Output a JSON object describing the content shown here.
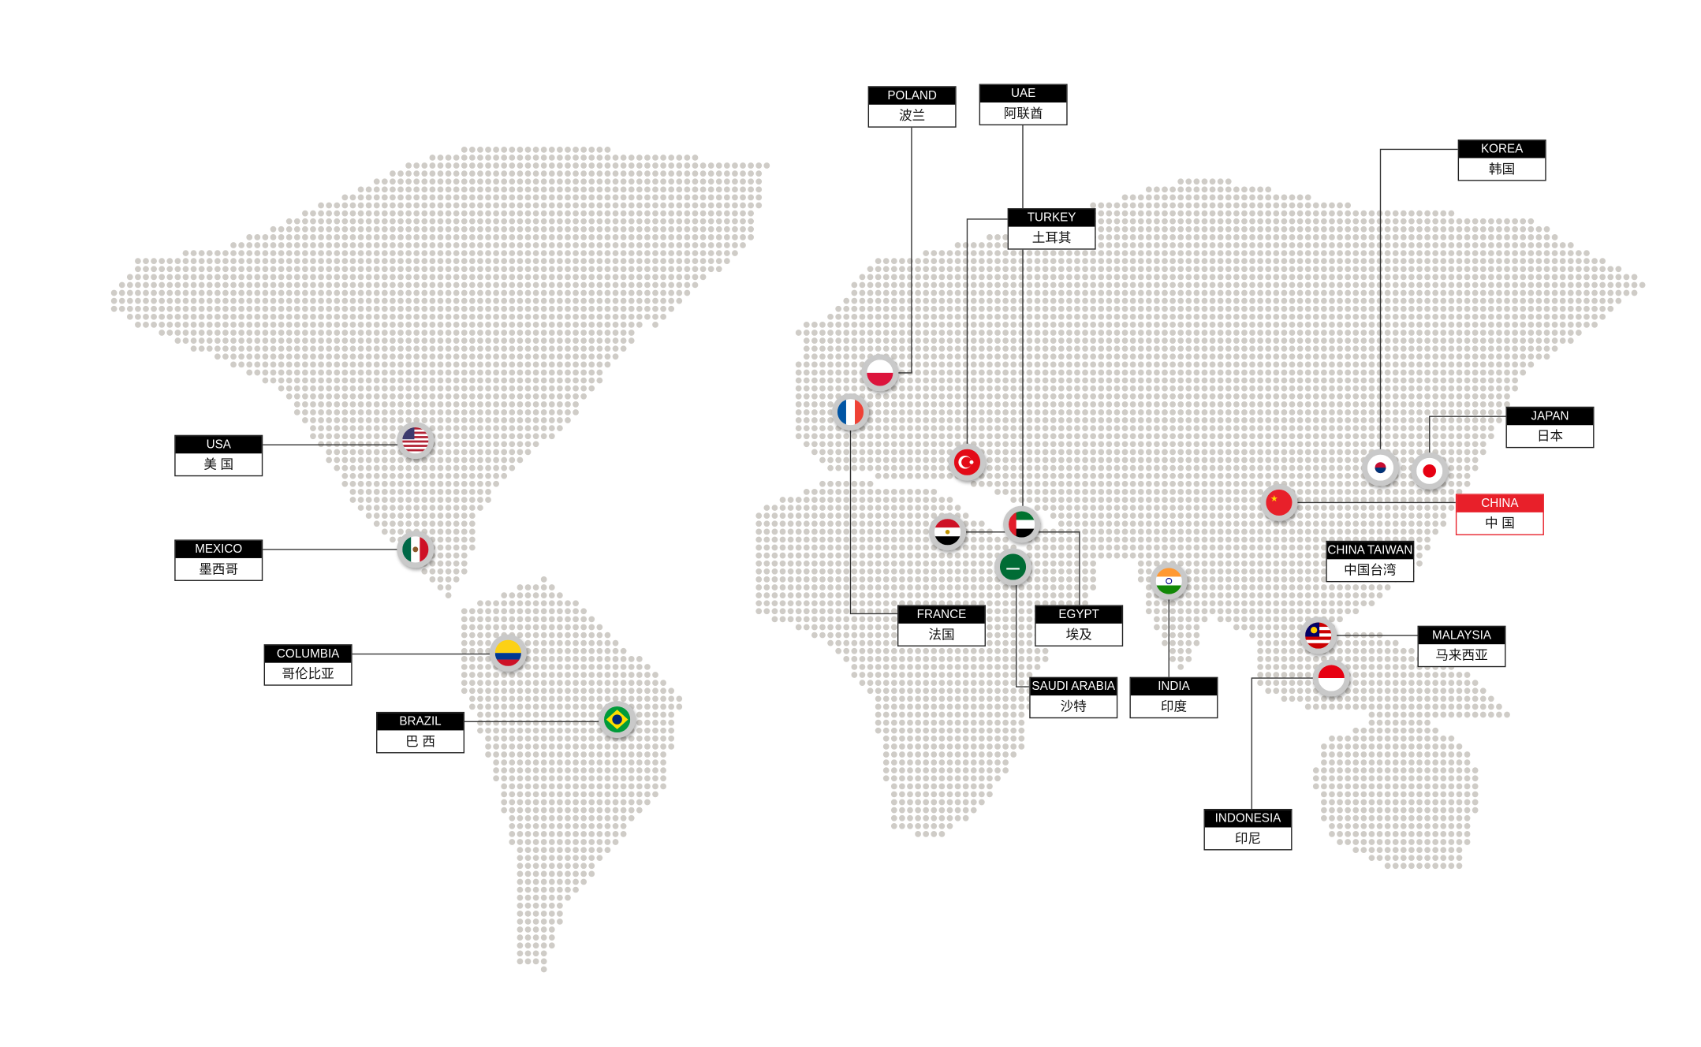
{
  "colors": {
    "dot": "#cfccc7",
    "label_bg": "#000000",
    "highlight": "#e8202a",
    "line": "#333333"
  },
  "locations": [
    {
      "id": "poland",
      "en": "POLAND",
      "zh": "波兰",
      "flag": "poland-flag-icon"
    },
    {
      "id": "uae",
      "en": "UAE",
      "zh": "阿联酋",
      "flag": "uae-flag-icon"
    },
    {
      "id": "turkey",
      "en": "TURKEY",
      "zh": "土耳其",
      "flag": "turkey-flag-icon"
    },
    {
      "id": "korea",
      "en": "KOREA",
      "zh": "韩国",
      "flag": "korea-flag-icon"
    },
    {
      "id": "japan",
      "en": "JAPAN",
      "zh": "日本",
      "flag": "japan-flag-icon"
    },
    {
      "id": "china",
      "en": "CHINA",
      "zh": "中 国",
      "flag": "china-flag-icon",
      "highlighted": true
    },
    {
      "id": "china_taiwan",
      "en": "CHINA TAIWAN",
      "zh": "中国台湾"
    },
    {
      "id": "malaysia",
      "en": "MALAYSIA",
      "zh": "马来西亚",
      "flag": "malaysia-flag-icon"
    },
    {
      "id": "indonesia",
      "en": "INDONESIA",
      "zh": "印尼",
      "flag": "indonesia-flag-icon"
    },
    {
      "id": "india",
      "en": "INDIA",
      "zh": "印度",
      "flag": "india-flag-icon"
    },
    {
      "id": "saudi",
      "en": "SAUDI ARABIA",
      "zh": "沙特",
      "flag": "saudi-flag-icon"
    },
    {
      "id": "egypt",
      "en": "EGYPT",
      "zh": "埃及",
      "flag": "egypt-flag-icon"
    },
    {
      "id": "france",
      "en": "FRANCE",
      "zh": "法国",
      "flag": "france-flag-icon"
    },
    {
      "id": "usa",
      "en": "USA",
      "zh": "美 国",
      "flag": "usa-flag-icon"
    },
    {
      "id": "mexico",
      "en": "MEXICO",
      "zh": "墨西哥",
      "flag": "mexico-flag-icon"
    },
    {
      "id": "columbia",
      "en": "COLUMBIA",
      "zh": "哥伦比亚",
      "flag": "colombia-flag-icon"
    },
    {
      "id": "brazil",
      "en": "BRAZIL",
      "zh": "巴 西",
      "flag": "brazil-flag-icon"
    }
  ]
}
